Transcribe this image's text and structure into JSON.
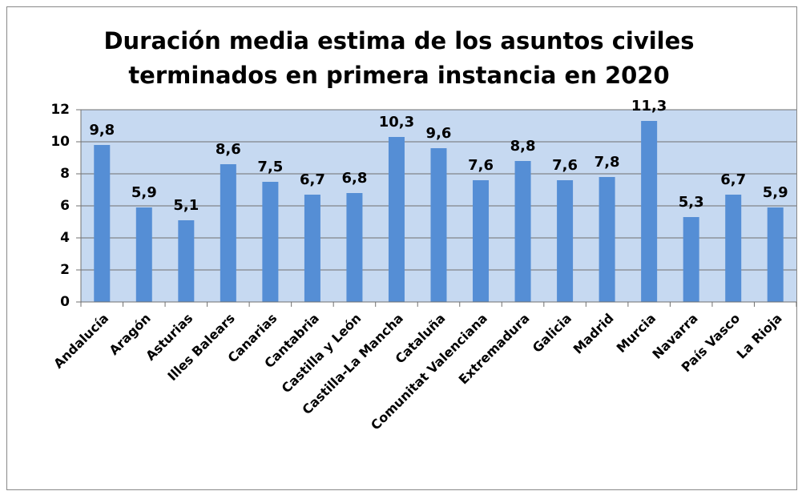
{
  "chart_data": {
    "type": "bar",
    "title": [
      "Duración media estima de los asuntos civiles",
      "terminados en primera instancia en 2020"
    ],
    "categories": [
      "Andalucía",
      "Aragón",
      "Asturias",
      "Illes Balears",
      "Canarias",
      "Cantabria",
      "Castilla y León",
      "Castilla-La Mancha",
      "Cataluña",
      "Comunitat Valenciana",
      "Extremadura",
      "Galicia",
      "Madrid",
      "Murcia",
      "Navarra",
      "País Vasco",
      "La Rioja"
    ],
    "values": [
      9.8,
      5.9,
      5.1,
      8.6,
      7.5,
      6.7,
      6.8,
      10.3,
      9.6,
      7.6,
      8.8,
      7.6,
      7.8,
      11.3,
      5.3,
      6.7,
      5.9
    ],
    "value_labels": [
      "9,8",
      "5,9",
      "5,1",
      "8,6",
      "7,5",
      "6,7",
      "6,8",
      "10,3",
      "9,6",
      "7,6",
      "8,8",
      "7,6",
      "7,8",
      "11,3",
      "5,3",
      "6,7",
      "5,9"
    ],
    "color": "#558ed5",
    "ylim": [
      0,
      12
    ],
    "yticks": [
      0,
      2,
      4,
      6,
      8,
      10,
      12
    ],
    "grid": true
  }
}
